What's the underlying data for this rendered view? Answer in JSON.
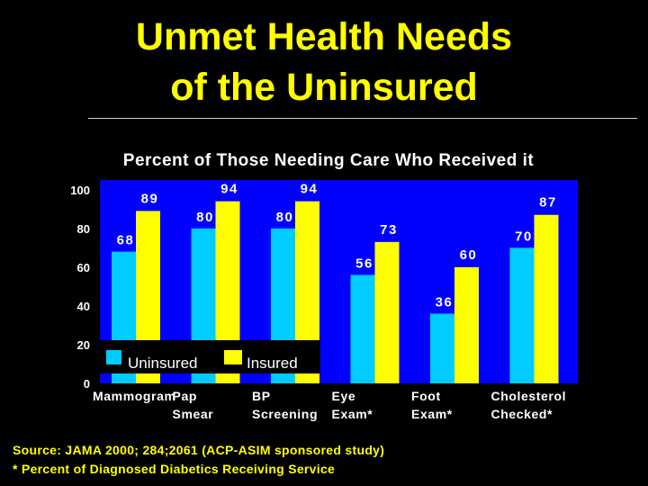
{
  "title_line1": "Unmet Health Needs",
  "title_line2": "of the Uninsured",
  "source_line1": "Source: JAMA 2000; 284;2061 (ACP-ASIM sponsored study)",
  "source_line2": "* Percent of Diagnosed Diabetics Receiving Service",
  "colors": {
    "background": "#000000",
    "plot_bg": "#0000ff",
    "uninsured": "#00ccff",
    "insured": "#ffff00",
    "title": "#ffff00"
  },
  "chart_data": {
    "type": "bar",
    "title": "Percent of Those Needing Care Who Received it",
    "categories": [
      [
        "Mammogram"
      ],
      [
        "Pap",
        "Smear"
      ],
      [
        "BP",
        "Screening"
      ],
      [
        "Eye",
        "Exam*"
      ],
      [
        "Foot",
        "Exam*"
      ],
      [
        "Cholesterol",
        "Checked*"
      ]
    ],
    "series": [
      {
        "name": "Uninsured",
        "values": [
          68,
          80,
          80,
          56,
          36,
          70
        ]
      },
      {
        "name": "Insured",
        "values": [
          89,
          94,
          94,
          73,
          60,
          87
        ]
      }
    ],
    "yticks": [
      0,
      20,
      40,
      60,
      80,
      100
    ],
    "ylim": [
      0,
      105
    ],
    "legend": "bottom-left inside plot",
    "data_labels": true,
    "grid": false
  }
}
